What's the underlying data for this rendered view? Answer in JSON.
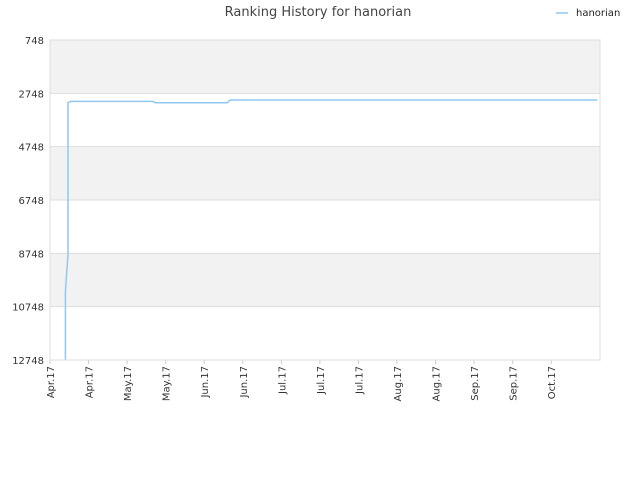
{
  "chart_data": {
    "type": "line",
    "title": "Ranking History for hanorian",
    "xlabel": "",
    "ylabel": "",
    "y_inverted": true,
    "ylim": [
      12748,
      748
    ],
    "y_ticks": [
      748,
      2748,
      4748,
      6748,
      8748,
      10748,
      12748
    ],
    "x_range": [
      "2017-03-31",
      "2017-10-31"
    ],
    "x_ticks": [
      {
        "date": "2017-03-31",
        "label": "Apr.17"
      },
      {
        "date": "2017-04-15",
        "label": "Apr.17"
      },
      {
        "date": "2017-04-30",
        "label": "May.17"
      },
      {
        "date": "2017-05-15",
        "label": "May.17"
      },
      {
        "date": "2017-05-30",
        "label": "Jun.17"
      },
      {
        "date": "2017-06-14",
        "label": "Jun.17"
      },
      {
        "date": "2017-06-29",
        "label": "Jul.17"
      },
      {
        "date": "2017-07-14",
        "label": "Jul.17"
      },
      {
        "date": "2017-07-29",
        "label": "Jul.17"
      },
      {
        "date": "2017-08-13",
        "label": "Aug.17"
      },
      {
        "date": "2017-08-28",
        "label": "Aug.17"
      },
      {
        "date": "2017-09-12",
        "label": "Sep.17"
      },
      {
        "date": "2017-09-27",
        "label": "Sep.17"
      },
      {
        "date": "2017-10-12",
        "label": "Oct.17"
      }
    ],
    "grid": true,
    "legend_position": "top-right",
    "series": [
      {
        "name": "hanorian",
        "color": "#90c8f0",
        "points": [
          {
            "x": "2017-04-06",
            "y": 12748
          },
          {
            "x": "2017-04-06",
            "y": 10150
          },
          {
            "x": "2017-04-07",
            "y": 8780
          },
          {
            "x": "2017-04-07",
            "y": 8320
          },
          {
            "x": "2017-04-07",
            "y": 6800
          },
          {
            "x": "2017-04-07",
            "y": 3100
          },
          {
            "x": "2017-04-08",
            "y": 3050
          },
          {
            "x": "2017-05-10",
            "y": 3050
          },
          {
            "x": "2017-05-11",
            "y": 3100
          },
          {
            "x": "2017-06-08",
            "y": 3100
          },
          {
            "x": "2017-06-09",
            "y": 3000
          },
          {
            "x": "2017-10-30",
            "y": 3000
          }
        ]
      }
    ]
  }
}
